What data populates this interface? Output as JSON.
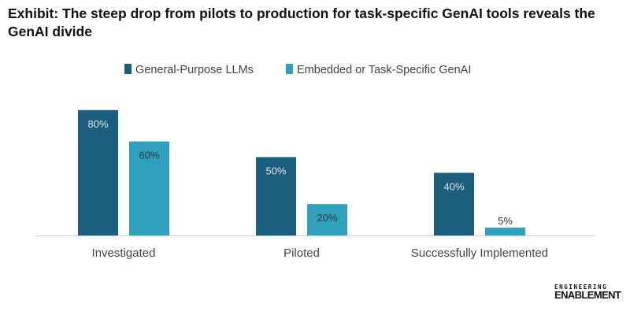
{
  "chart_data": {
    "type": "bar",
    "title": "Exhibit: The steep drop from pilots to production for task-specific GenAI tools reveals the GenAI divide",
    "categories": [
      "Investigated",
      "Piloted",
      "Successfully Implemented"
    ],
    "series": [
      {
        "name": "General-Purpose LLMs",
        "values": [
          80,
          50,
          40
        ],
        "labels": [
          "80%",
          "50%",
          "40%"
        ],
        "color": "#1b5e7e"
      },
      {
        "name": "Embedded or Task-Specific GenAI",
        "values": [
          60,
          20,
          5
        ],
        "labels": [
          "60%",
          "20%",
          "5%"
        ],
        "color": "#30a0bc"
      }
    ],
    "ylim": [
      0,
      100
    ],
    "xlabel": "",
    "ylabel": "",
    "legend": "top-center",
    "grid": false
  },
  "logo": {
    "line1": "ENGINEERING",
    "line2": "ENABLEMENT"
  }
}
